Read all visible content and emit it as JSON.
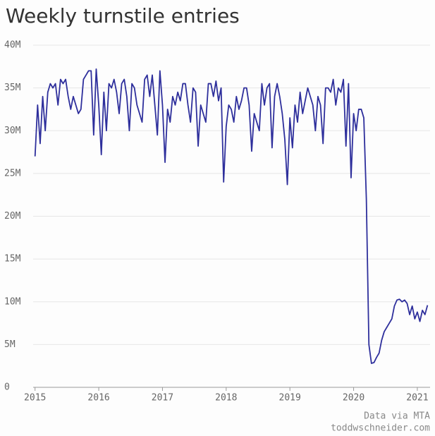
{
  "chart_data": {
    "type": "line",
    "title": "Weekly turnstile entries",
    "annotations": [
      "Data via MTA",
      "toddwschneider.com"
    ],
    "grid": true,
    "xlim": [
      2014.97,
      2021.2
    ],
    "xticks": [
      2015,
      2016,
      2017,
      2018,
      2019,
      2020,
      2021
    ],
    "ylim": [
      0,
      40
    ],
    "yticks": [
      0,
      {
        "value": 5,
        "label": "5M"
      },
      {
        "value": 10,
        "label": "10M"
      },
      {
        "value": 15,
        "label": "15M"
      },
      {
        "value": 20,
        "label": "20M"
      },
      {
        "value": 25,
        "label": "25M"
      },
      {
        "value": 30,
        "label": "30M"
      },
      {
        "value": 35,
        "label": "35M"
      },
      {
        "value": 40,
        "label": "40M"
      }
    ],
    "x": [
      2015,
      2015.04,
      2015.08,
      2015.12,
      2015.16,
      2015.2,
      2015.24,
      2015.28,
      2015.32,
      2015.36,
      2015.4,
      2015.44,
      2015.48,
      2015.52,
      2015.56,
      2015.6,
      2015.64,
      2015.68,
      2015.72,
      2015.76,
      2015.8,
      2015.84,
      2015.88,
      2015.92,
      2015.96,
      2016,
      2016.04,
      2016.08,
      2016.12,
      2016.16,
      2016.2,
      2016.24,
      2016.28,
      2016.32,
      2016.36,
      2016.4,
      2016.44,
      2016.48,
      2016.52,
      2016.56,
      2016.6,
      2016.64,
      2016.68,
      2016.72,
      2016.76,
      2016.8,
      2016.84,
      2016.88,
      2016.92,
      2016.96,
      2017,
      2017.04,
      2017.08,
      2017.12,
      2017.16,
      2017.2,
      2017.24,
      2017.28,
      2017.32,
      2017.36,
      2017.4,
      2017.44,
      2017.48,
      2017.52,
      2017.56,
      2017.6,
      2017.64,
      2017.68,
      2017.72,
      2017.76,
      2017.8,
      2017.84,
      2017.88,
      2017.92,
      2017.96,
      2018,
      2018.04,
      2018.08,
      2018.12,
      2018.16,
      2018.2,
      2018.24,
      2018.28,
      2018.32,
      2018.36,
      2018.4,
      2018.44,
      2018.48,
      2018.52,
      2018.56,
      2018.6,
      2018.64,
      2018.68,
      2018.72,
      2018.76,
      2018.8,
      2018.84,
      2018.88,
      2018.92,
      2018.96,
      2019,
      2019.04,
      2019.08,
      2019.12,
      2019.16,
      2019.2,
      2019.24,
      2019.28,
      2019.32,
      2019.36,
      2019.4,
      2019.44,
      2019.48,
      2019.52,
      2019.56,
      2019.6,
      2019.64,
      2019.68,
      2019.72,
      2019.76,
      2019.8,
      2019.84,
      2019.88,
      2019.92,
      2019.96,
      2020,
      2020.04,
      2020.08,
      2020.12,
      2020.16,
      2020.2,
      2020.24,
      2020.28,
      2020.32,
      2020.36,
      2020.4,
      2020.44,
      2020.48,
      2020.52,
      2020.56,
      2020.6,
      2020.64,
      2020.68,
      2020.72,
      2020.76,
      2020.8,
      2020.84,
      2020.88,
      2020.92,
      2020.96,
      2021,
      2021.04,
      2021.08,
      2021.12,
      2021.16
    ],
    "series": [
      {
        "name": "Weekly turnstile entries",
        "color": "#2e2f9c",
        "values": [
          27,
          33,
          28.5,
          34,
          30,
          34.5,
          35.5,
          35,
          35.5,
          33,
          36,
          35.5,
          36,
          34,
          32.5,
          34,
          33,
          32,
          32.5,
          36,
          36.5,
          37,
          37,
          29.5,
          37.2,
          33,
          27.2,
          34.5,
          30,
          35.5,
          35,
          36,
          34.5,
          32,
          35.5,
          36,
          34,
          30,
          35.5,
          35,
          33,
          32,
          31,
          36,
          36.5,
          34,
          36.5,
          33,
          29.5,
          37,
          33,
          26.3,
          32.5,
          31,
          34,
          33,
          34.5,
          33.5,
          35.5,
          35.5,
          33,
          31,
          35,
          34.5,
          28.2,
          33,
          32,
          31,
          35.5,
          35.5,
          34,
          35.8,
          33.5,
          35,
          24,
          30.5,
          33,
          32.5,
          31,
          34,
          32.5,
          33.5,
          35,
          35,
          33,
          27.6,
          32,
          31,
          30,
          35.5,
          33,
          35,
          35.5,
          28,
          34,
          35.5,
          34,
          32,
          29,
          23.7,
          31.5,
          28,
          33,
          31,
          34.5,
          32,
          33.5,
          35,
          34,
          33,
          30,
          34,
          33,
          28.5,
          35,
          35,
          34.5,
          36,
          33,
          35,
          34.5,
          36,
          28.2,
          35.5,
          24.5,
          32,
          30,
          32.5,
          32.5,
          31.5,
          22,
          5,
          2.8,
          2.9,
          3.5,
          4,
          5.5,
          6.5,
          7,
          7.5,
          8,
          9.5,
          10.2,
          10.3,
          10,
          10.2,
          9.8,
          8.5,
          9.5,
          8,
          8.8,
          7.7,
          9,
          8.5,
          9.6
        ]
      }
    ]
  }
}
